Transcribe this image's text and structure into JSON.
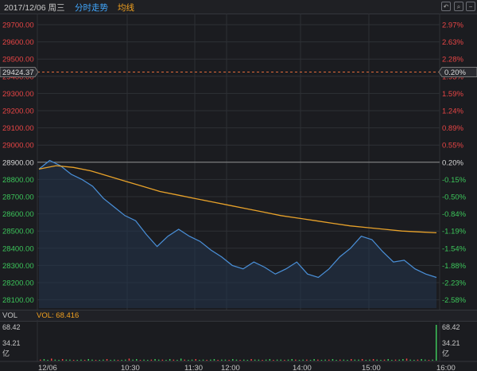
{
  "header": {
    "date": "2017/12/06 周三",
    "mode_tab": "分时走势",
    "avg_tab": "均线",
    "icons": [
      "back-icon",
      "search-icon",
      "zoom-out-icon"
    ]
  },
  "colors": {
    "price_line": "#4a90d9",
    "avg_line": "#e8a22a",
    "up": "#e84545",
    "down": "#3cc55a",
    "ref": "#d7d7d7"
  },
  "main_chart": {
    "ref_price": "28900.00",
    "ref_pct": "0.20%",
    "prev_close_marker": {
      "price": "29424.37",
      "pct": "0.20%"
    },
    "y_labels": [
      "29700.00",
      "29600.00",
      "29500.00",
      "29400.00",
      "29300.00",
      "29200.00",
      "29100.00",
      "29000.00",
      "28900.00",
      "28800.00",
      "28700.00",
      "28600.00",
      "28500.00",
      "28400.00",
      "28300.00",
      "28200.00",
      "28100.00"
    ],
    "pct_labels": [
      "2.97%",
      "2.63%",
      "2.28%",
      "1.93%",
      "1.59%",
      "1.24%",
      "0.89%",
      "0.55%",
      "0.20%",
      "-0.15%",
      "-0.50%",
      "-0.84%",
      "-1.19%",
      "-1.54%",
      "-1.88%",
      "-2.23%",
      "-2.58%"
    ]
  },
  "volume": {
    "label": "VOL",
    "value_text": "VOL: 68.416",
    "max_left": "68.42",
    "mid_left": "34.21",
    "unit_left": "亿",
    "max_right": "68.42",
    "mid_right": "34.21",
    "unit_right": "亿"
  },
  "x_labels": [
    "12/06",
    "10:30",
    "11:30",
    "12:00",
    "14:00",
    "15:00",
    "16:00"
  ],
  "chart_data": {
    "type": "line",
    "x_labels": [
      "12/06",
      "10:30",
      "11:30",
      "12:00",
      "14:00",
      "15:00",
      "16:00"
    ],
    "ylim": [
      28050,
      29750
    ],
    "series": [
      {
        "values": [
          28860,
          28910,
          28880,
          28830,
          28800,
          28760,
          28690,
          28640,
          28590,
          28560,
          28480,
          28410,
          28470,
          28510,
          28470,
          28440,
          28390,
          28350,
          28300,
          28280,
          28320,
          28290,
          28250,
          28280,
          28320,
          28250,
          28230,
          28280,
          28350,
          28400,
          28470,
          28450,
          28380,
          28320,
          28330,
          28280,
          28250,
          28230
        ]
      },
      {
        "values": [
          28860,
          28880,
          28870,
          28850,
          28820,
          28790,
          28760,
          28730,
          28710,
          28690,
          28670,
          28650,
          28630,
          28610,
          28590,
          28575,
          28560,
          28545,
          28530,
          28520,
          28510,
          28500,
          28495,
          28490
        ]
      }
    ],
    "volume": [
      2,
      3,
      1,
      4,
      2,
      1,
      3,
      2,
      2,
      1,
      1,
      2,
      1,
      3,
      2,
      1,
      1,
      2,
      3,
      1,
      2,
      1,
      1,
      2,
      4,
      2,
      3,
      1,
      2,
      1,
      2,
      3,
      2,
      2,
      1,
      3,
      2,
      1,
      4,
      2,
      1,
      2,
      3,
      1,
      2,
      1,
      2,
      3,
      1,
      2,
      2,
      1,
      3,
      2,
      1,
      2,
      1,
      3,
      2,
      2,
      1,
      2,
      3,
      1,
      2,
      2,
      1,
      2,
      3,
      2,
      1,
      2,
      2,
      1,
      3,
      2,
      1,
      2,
      2,
      3,
      1,
      2,
      2,
      1,
      3,
      2,
      2,
      3,
      1,
      2,
      3,
      2,
      1,
      2,
      3,
      1,
      2,
      2,
      3,
      4,
      2,
      1,
      2,
      3,
      2,
      1,
      2,
      68
    ]
  }
}
